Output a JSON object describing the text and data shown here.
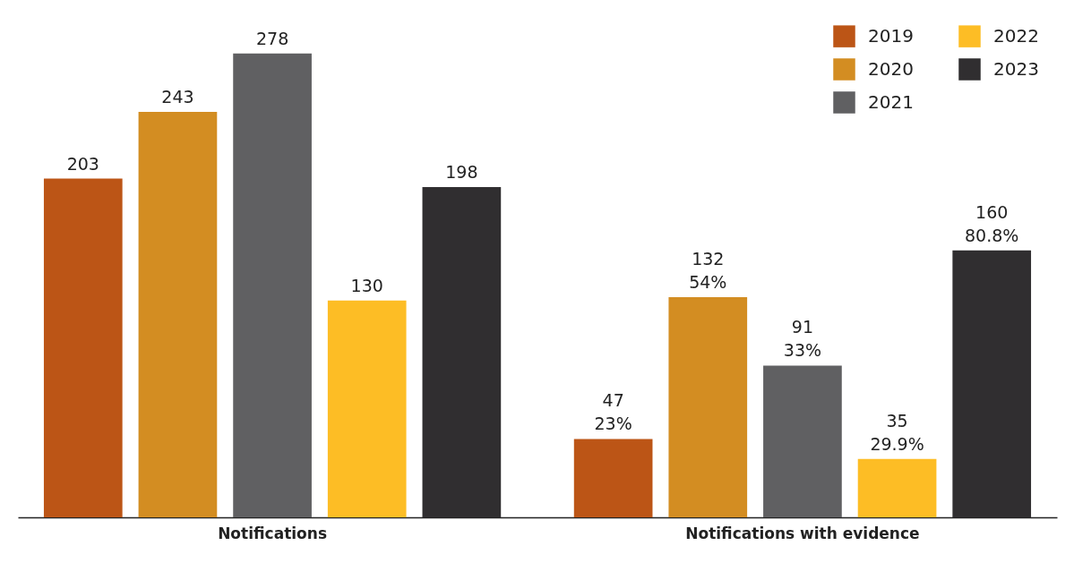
{
  "chart_data": {
    "type": "bar",
    "categories": [
      "Notifications",
      "Notifications with evidence"
    ],
    "legend": "top right",
    "series": [
      {
        "name": "2019",
        "color": "#bc5516",
        "values": [
          203,
          47
        ],
        "value_labels": [
          "203",
          "47\n23%"
        ]
      },
      {
        "name": "2020",
        "color": "#d38d22",
        "values": [
          243,
          132
        ],
        "value_labels": [
          "243",
          "132\n54%"
        ]
      },
      {
        "name": "2021",
        "color": "#606062",
        "values": [
          278,
          91
        ],
        "value_labels": [
          "278",
          "91\n33%"
        ]
      },
      {
        "name": "2022",
        "color": "#fdbd25",
        "values": [
          130,
          35
        ],
        "value_labels": [
          "130",
          "35\n29.9%"
        ]
      },
      {
        "name": "2023",
        "color": "#302e30",
        "values": [
          198,
          160
        ],
        "value_labels": [
          "198",
          "160\n80.8%"
        ]
      }
    ]
  }
}
